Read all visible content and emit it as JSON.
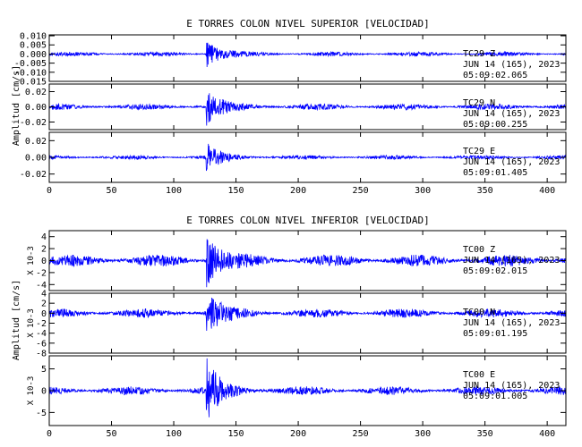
{
  "chart_data": [
    {
      "type": "line",
      "title": "E TORRES COLON NIVEL SUPERIOR [VELOCIDAD]",
      "ylabel": "Amplitud [cm/s]",
      "xlim": [
        0,
        415
      ],
      "xticks": [
        "0",
        "50",
        "100",
        "150",
        "200",
        "250",
        "300",
        "350",
        "400"
      ],
      "color": "#0000ff",
      "traces": [
        {
          "station": "TC29",
          "component": "Z",
          "date": "JUN 14 (165), 2023",
          "time": "05:09:02.065",
          "ylim": [
            -0.015,
            0.0105
          ],
          "yticks": [
            "0.010",
            "0.005",
            "0.000",
            "-0.005",
            "-0.010",
            "-0.015"
          ],
          "noise_amplitude": 0.0012,
          "event_amplitude": 0.008
        },
        {
          "station": "TC29",
          "component": "N",
          "date": "JUN 14 (165), 2023",
          "time": "05:09:00.255",
          "ylim": [
            -0.03,
            0.03
          ],
          "yticks": [
            "0.02",
            "0.00",
            "-0.02"
          ],
          "noise_amplitude": 0.004,
          "event_amplitude": 0.024
        },
        {
          "station": "TC29",
          "component": "E",
          "date": "JUN 14 (165), 2023",
          "time": "05:09:01.405",
          "ylim": [
            -0.03,
            0.03
          ],
          "yticks": [
            "0.02",
            "0.00",
            "-0.02"
          ],
          "noise_amplitude": 0.0025,
          "event_amplitude": 0.018
        }
      ]
    },
    {
      "type": "line",
      "title": "E TORRES COLON NIVEL INFERIOR [VELOCIDAD]",
      "ylabel": "Amplitud [cm/s]",
      "scale_label": "X 10-3",
      "xlim": [
        0,
        415
      ],
      "xticks": [
        "0",
        "50",
        "100",
        "150",
        "200",
        "250",
        "300",
        "350",
        "400"
      ],
      "color": "#0000ff",
      "traces": [
        {
          "station": "TC00",
          "component": "Z",
          "date": "JUN 14 (165), 2023",
          "time": "05:09:02.015",
          "ylim": [
            -5,
            5
          ],
          "yticks": [
            "4",
            "2",
            "0",
            "-2",
            "-4"
          ],
          "noise_amplitude": 1.0,
          "event_amplitude": 4.5
        },
        {
          "station": "TC00",
          "component": "N",
          "date": "JUN 14 (165), 2023",
          "time": "05:09:01.195",
          "ylim": [
            -8,
            4
          ],
          "yticks": [
            "4",
            "2",
            "0",
            "-2",
            "-4",
            "-6",
            "-8"
          ],
          "noise_amplitude": 0.9,
          "event_amplitude": 4.5
        },
        {
          "station": "TC00",
          "component": "E",
          "date": "JUN 14 (165), 2023",
          "time": "05:09:01.005",
          "ylim": [
            -8,
            8
          ],
          "yticks": [
            "5",
            "0",
            "-5"
          ],
          "noise_amplitude": 1.0,
          "event_amplitude": 7
        }
      ]
    }
  ]
}
